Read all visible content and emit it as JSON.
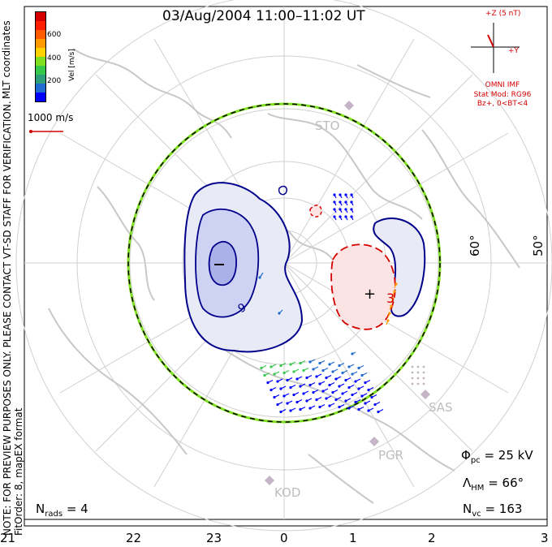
{
  "title": "03/Aug/2004 11:00–11:02 UT",
  "sidebar": {
    "note": "NOTE: FOR PREVIEW PURPOSES ONLY. PLEASE CONTACT VT-SD STAFF FOR VERIFICATION.",
    "fit": "FitOrder: 8, mapEX format",
    "coords": "MLT coordinates"
  },
  "colorbar": {
    "label": "Vel [m/s]",
    "ticks": [
      "600",
      "400",
      "200"
    ],
    "colors": [
      "#0000ff",
      "#1f6bd1",
      "#2e9e7a",
      "#37c94b",
      "#7fe01f",
      "#ffd200",
      "#ff9b00",
      "#ff5a00",
      "#ff1e00",
      "#d40000"
    ]
  },
  "scale_vector": "1000 m/s",
  "imf": {
    "z_label": "+Z (5 nT)",
    "y_label": "+Y",
    "source": "OMNI IMF",
    "model": "Stat Mod: RG96",
    "condition": "Bz+, 0<BT<4"
  },
  "lat_labels": [
    "60°",
    "50°"
  ],
  "mlt_ticks": [
    "21",
    "22",
    "23",
    "0",
    "1",
    "2",
    "3"
  ],
  "sites": [
    "STO",
    "SAS",
    "PGR",
    "KOD"
  ],
  "contour_labels": {
    "min_marker": "−",
    "max_marker": "+",
    "neg_value": "9",
    "pos_value": "3"
  },
  "stats": {
    "phi_symbol": "Φ",
    "phi_sub": "pc",
    "phi_value": "= 25 kV",
    "lambda_symbol": "Λ",
    "lambda_sub": "HM",
    "lambda_value": "= 66°",
    "nvc_symbol": "N",
    "nvc_sub": "vc",
    "nvc_value": "= 163",
    "nrads_symbol": "N",
    "nrads_sub": "rads",
    "nrads_value": "= 4"
  }
}
